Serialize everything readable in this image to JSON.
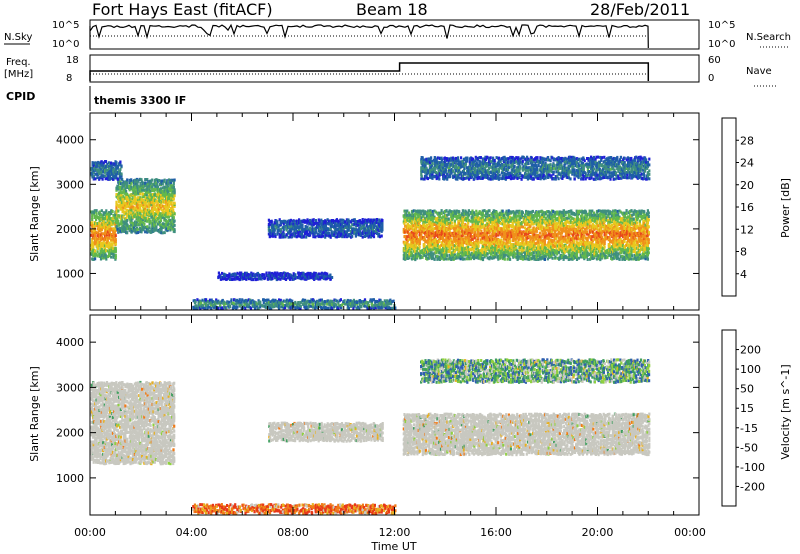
{
  "header": {
    "site": "Fort Hays East (fitACF)",
    "beam": "Beam 18",
    "date": "28/Feb/2011"
  },
  "aux_panels": {
    "nsky_label": "N.Sky",
    "nsearch_label": "N.Search",
    "nsky_ticks": [
      "10^5",
      "10^0"
    ],
    "nsearch_ticks": [
      "10^5",
      "10^0"
    ],
    "freq_label": "Freq.",
    "freq_unit": "[MHz]",
    "freq_ticks": [
      "18",
      "8"
    ],
    "nave_label": "Nave",
    "nave_ticks": [
      "60",
      "0"
    ],
    "cpid_label": "CPID",
    "cpid_value": "themis 3300 IF"
  },
  "colors": {
    "power_scale": [
      "#1f1fd6",
      "#1f5ea8",
      "#3f8f7f",
      "#62b84d",
      "#e8c81e",
      "#f0901a",
      "#e8481a",
      "#e01010"
    ],
    "velocity_scale": [
      "#1e1e9e",
      "#2f5fb0",
      "#3f9f5f",
      "#8fd040",
      "#c8c8c0",
      "#e8b020",
      "#f07a18",
      "#e83818",
      "#e01010"
    ],
    "ground_scatter": "#c8c8c0"
  },
  "chart_data": [
    {
      "type": "heatmap",
      "title": "Power",
      "xlabel": "Time UT",
      "ylabel": "Slant Range [km]",
      "x_range_hours": [
        0,
        24
      ],
      "ylim": [
        180,
        4600
      ],
      "x_ticks": [
        "00:00",
        "04:00",
        "08:00",
        "12:00",
        "16:00",
        "20:00",
        "00:00"
      ],
      "y_ticks": [
        "1000",
        "2000",
        "3000",
        "4000"
      ],
      "colorbar": {
        "label": "Power [dB]",
        "ticks": [
          "4",
          "8",
          "12",
          "16",
          "20",
          "24",
          "28"
        ],
        "range": [
          0,
          32
        ]
      },
      "regions": [
        {
          "t_start": 0.0,
          "t_end": 1.0,
          "range_low": 1300,
          "range_high": 2400,
          "mean_power": 20
        },
        {
          "t_start": 1.0,
          "t_end": 3.3,
          "range_low": 1900,
          "range_high": 3100,
          "mean_power": 16
        },
        {
          "t_start": 0.0,
          "t_end": 1.2,
          "range_low": 3100,
          "range_high": 3500,
          "mean_power": 8
        },
        {
          "t_start": 7.0,
          "t_end": 11.5,
          "range_low": 1800,
          "range_high": 2200,
          "mean_power": 6
        },
        {
          "t_start": 5.0,
          "t_end": 9.5,
          "range_low": 850,
          "range_high": 1000,
          "mean_power": 4
        },
        {
          "t_start": 12.3,
          "t_end": 22.0,
          "range_low": 1300,
          "range_high": 2400,
          "mean_power": 20
        },
        {
          "t_start": 13.0,
          "t_end": 22.0,
          "range_low": 3100,
          "range_high": 3600,
          "mean_power": 8
        },
        {
          "t_start": 4.0,
          "t_end": 12.0,
          "range_low": 200,
          "range_high": 400,
          "mean_power": 10
        }
      ]
    },
    {
      "type": "heatmap",
      "title": "Velocity",
      "xlabel": "Time UT",
      "ylabel": "Slant Range [km]",
      "x_range_hours": [
        0,
        24
      ],
      "ylim": [
        180,
        4600
      ],
      "x_ticks": [
        "00:00",
        "04:00",
        "08:00",
        "12:00",
        "16:00",
        "20:00",
        "00:00"
      ],
      "y_ticks": [
        "1000",
        "2000",
        "3000",
        "4000"
      ],
      "colorbar": {
        "label": "Velocity [m s^-1]",
        "ticks": [
          "200",
          "100",
          "50",
          "15",
          "-15",
          "-50",
          "-100",
          "-200"
        ],
        "range": [
          -250,
          250
        ]
      },
      "regions": [
        {
          "t_start": 0.0,
          "t_end": 3.3,
          "range_low": 1300,
          "range_high": 3100,
          "mean_velocity": 0
        },
        {
          "t_start": 7.0,
          "t_end": 11.5,
          "range_low": 1800,
          "range_high": 2200,
          "mean_velocity": 0
        },
        {
          "t_start": 12.3,
          "t_end": 22.0,
          "range_low": 1500,
          "range_high": 2400,
          "mean_velocity": 0
        },
        {
          "t_start": 13.0,
          "t_end": 22.0,
          "range_low": 3100,
          "range_high": 3600,
          "mean_velocity": 60
        },
        {
          "t_start": 4.0,
          "t_end": 12.0,
          "range_low": 200,
          "range_high": 400,
          "mean_velocity": -80
        }
      ]
    }
  ]
}
